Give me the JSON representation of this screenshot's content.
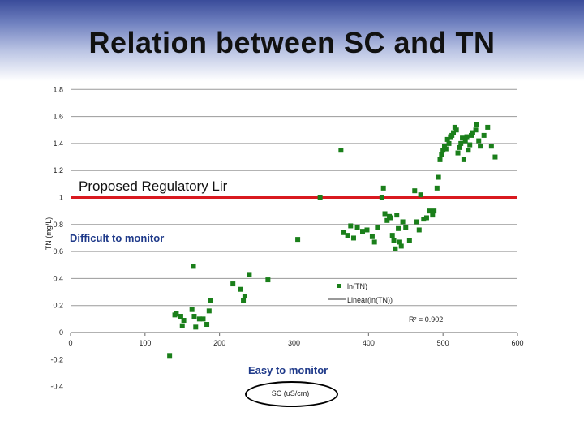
{
  "title": "Relation between SC and TN",
  "colors": {
    "points": "#1a7f1a",
    "regulatory_line": "#d9191f",
    "annotation": "#1f3a8a",
    "grid": "#9a9a9a",
    "trend": "#333333"
  },
  "annotations": {
    "regulatory_limit": "Proposed Regulatory Lir",
    "difficult": "Difficult to monitor",
    "easy": "Easy to monitor"
  },
  "legend": {
    "series_label": "ln(TN)",
    "trend_label": "Linear(ln(TN))",
    "r2": "R² = 0.902"
  },
  "chart_data": {
    "type": "scatter",
    "xlabel": "SC (uS/cm)",
    "ylabel": "TN (mg/L)",
    "xlim": [
      0,
      600
    ],
    "ylim": [
      -0.4,
      1.8
    ],
    "xticks": [
      0,
      100,
      200,
      300,
      400,
      500,
      600
    ],
    "yticks": [
      -0.4,
      -0.2,
      0,
      0.2,
      0.4,
      0.6,
      0.8,
      1,
      1.2,
      1.4,
      1.6,
      1.8
    ],
    "xtick_labels": [
      "0",
      "100",
      "200",
      "300",
      "400",
      "500",
      "600"
    ],
    "ytick_labels": [
      "-0.4",
      "-0.2",
      "0",
      "0.2",
      "0.4",
      "0.6",
      "0.8",
      "1",
      "1.2",
      "1.4",
      "1.6",
      "1.8"
    ],
    "grid": "horizontal",
    "regulatory_limit": 1.0,
    "series": [
      {
        "name": "ln(TN)",
        "x": [
          133,
          140,
          142,
          148,
          150,
          152,
          163,
          165,
          166,
          168,
          173,
          178,
          183,
          186,
          188,
          218,
          228,
          232,
          234,
          240,
          265,
          305,
          335,
          363,
          367,
          372,
          376,
          380,
          385,
          392,
          398,
          405,
          408,
          412,
          418,
          420,
          422,
          425,
          428,
          430,
          432,
          434,
          436,
          438,
          440,
          442,
          444,
          446,
          450,
          455,
          462,
          465,
          468,
          470,
          474,
          478,
          482,
          486,
          488,
          492,
          494,
          496,
          498,
          500,
          502,
          504,
          506,
          508,
          510,
          512,
          514,
          516,
          518,
          520,
          522,
          524,
          526,
          528,
          530,
          532,
          534,
          536,
          538,
          540,
          544,
          545,
          548,
          550,
          555,
          560,
          565,
          570
        ],
        "y": [
          -0.17,
          0.13,
          0.14,
          0.12,
          0.05,
          0.09,
          0.17,
          0.49,
          0.12,
          0.04,
          0.1,
          0.1,
          0.06,
          0.16,
          0.24,
          0.36,
          0.32,
          0.24,
          0.27,
          0.43,
          0.39,
          0.69,
          1.0,
          1.35,
          0.74,
          0.72,
          0.79,
          0.7,
          0.78,
          0.75,
          0.76,
          0.71,
          0.67,
          0.78,
          1.0,
          1.07,
          0.88,
          0.83,
          0.86,
          0.85,
          0.72,
          0.68,
          0.62,
          0.87,
          0.77,
          0.67,
          0.64,
          0.82,
          0.78,
          0.68,
          1.05,
          0.82,
          0.76,
          1.02,
          0.84,
          0.85,
          0.9,
          0.87,
          0.9,
          1.07,
          1.15,
          1.28,
          1.32,
          1.35,
          1.38,
          1.36,
          1.43,
          1.4,
          1.45,
          1.46,
          1.48,
          1.52,
          1.5,
          1.33,
          1.37,
          1.4,
          1.44,
          1.28,
          1.42,
          1.45,
          1.35,
          1.39,
          1.46,
          1.48,
          1.5,
          1.54,
          1.42,
          1.38,
          1.46,
          1.52,
          1.38,
          1.3
        ]
      }
    ]
  }
}
